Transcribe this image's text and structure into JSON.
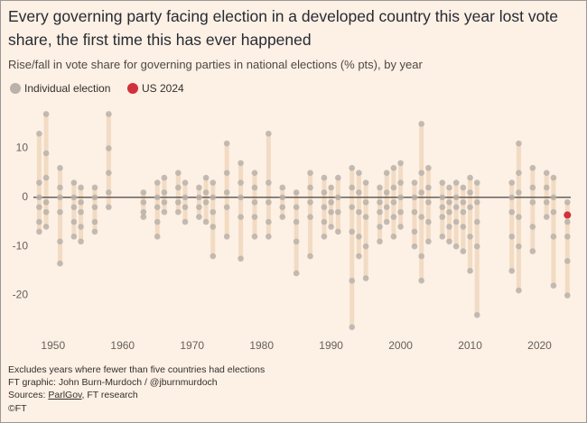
{
  "chart_data": {
    "type": "strip",
    "title": "Every governing party facing election in a developed country this year lost vote share, the first time this has ever happened",
    "subtitle": "Rise/fall in vote share for governing parties in national elections (% pts), by year",
    "notes": [
      "Excludes years where fewer than five countries had elections",
      "FT graphic: John Burn-Murdoch / @jburnmurdoch"
    ],
    "sources_label": "Sources:",
    "sources_link": "ParlGov",
    "sources_rest": ", FT research",
    "credit": "©FT",
    "xlim": [
      1946,
      2025
    ],
    "ylim": [
      -28,
      18
    ],
    "xticks": [
      1950,
      1960,
      1970,
      1980,
      1990,
      2000,
      2010,
      2020
    ],
    "yticks": [
      -20,
      -10,
      0,
      10
    ],
    "range_color": "#f2dbc3",
    "series": [
      {
        "name": "Individual election",
        "color": "#b9b1aa",
        "x": [
          1948,
          1949,
          1951,
          1953,
          1954,
          1956,
          1958,
          1963,
          1965,
          1966,
          1968,
          1969,
          1971,
          1972,
          1973,
          1975,
          1977,
          1979,
          1981,
          1983,
          1985,
          1987,
          1989,
          1990,
          1991,
          1993,
          1994,
          1995,
          1997,
          1998,
          1999,
          2000,
          2002,
          2003,
          2004,
          2006,
          2007,
          2008,
          2009,
          2010,
          2011,
          2016,
          2017,
          2019,
          2021,
          2022,
          2024
        ],
        "values": [
          [
            13,
            3,
            0,
            -2,
            -5,
            -7
          ],
          [
            17,
            9,
            4,
            -1,
            -3,
            -6
          ],
          [
            6,
            2,
            0,
            -3,
            -9,
            -13.5
          ],
          [
            3,
            0,
            -2,
            -5,
            -8
          ],
          [
            2,
            -1,
            -3,
            -6,
            -9
          ],
          [
            2,
            0,
            -2,
            -5,
            -7
          ],
          [
            17,
            10,
            5,
            1,
            -2
          ],
          [
            1,
            -1,
            -3,
            -4
          ],
          [
            3,
            0,
            -2,
            -5,
            -8
          ],
          [
            4,
            1,
            -1,
            -3
          ],
          [
            5,
            2,
            -1,
            -3
          ],
          [
            3,
            0,
            -2,
            -5
          ],
          [
            2,
            0,
            -2,
            -4
          ],
          [
            4,
            1,
            -1,
            -5
          ],
          [
            3,
            0,
            -3,
            -6,
            -12
          ],
          [
            11,
            5,
            1,
            -2,
            -8
          ],
          [
            7,
            3,
            0,
            -4,
            -12.5
          ],
          [
            5,
            2,
            -1,
            -4,
            -8
          ],
          [
            13,
            3,
            -1,
            -5,
            -8
          ],
          [
            2,
            0,
            -2,
            -4
          ],
          [
            1,
            -2,
            -5,
            -9,
            -15.5
          ],
          [
            5,
            2,
            -1,
            -4,
            -12
          ],
          [
            4,
            1,
            -2,
            -5,
            -8
          ],
          [
            2,
            -1,
            -3,
            -6
          ],
          [
            4,
            0,
            -3,
            -7
          ],
          [
            6,
            2,
            -2,
            -7,
            -17,
            -26.5
          ],
          [
            5,
            1,
            -3,
            -8,
            -12
          ],
          [
            3,
            -1,
            -4,
            -10,
            -16.5
          ],
          [
            2,
            -1,
            -3,
            -6,
            -9
          ],
          [
            5,
            1,
            -2,
            -5
          ],
          [
            6,
            2,
            -1,
            -4,
            -8
          ],
          [
            7,
            3,
            0,
            -3,
            -6
          ],
          [
            3,
            0,
            -3,
            -7,
            -10
          ],
          [
            15,
            5,
            1,
            -4,
            -12,
            -17
          ],
          [
            6,
            2,
            -1,
            -5,
            -9
          ],
          [
            3,
            0,
            -2,
            -4,
            -8
          ],
          [
            2,
            -1,
            -3,
            -6,
            -9
          ],
          [
            3,
            0,
            -2,
            -5,
            -10
          ],
          [
            2,
            -1,
            -3,
            -6,
            -11
          ],
          [
            4,
            1,
            -2,
            -8,
            -15
          ],
          [
            3,
            -1,
            -5,
            -10,
            -24
          ],
          [
            3,
            0,
            -3,
            -8,
            -15
          ],
          [
            11,
            5,
            1,
            -4,
            -10,
            -19
          ],
          [
            6,
            2,
            -1,
            -6,
            -11
          ],
          [
            5,
            2,
            -1,
            -4
          ],
          [
            4,
            0,
            -3,
            -8,
            -18
          ],
          [
            -1,
            -5,
            -8,
            -13,
            -20
          ]
        ]
      },
      {
        "name": "US 2024",
        "color": "#d3303d",
        "x": [
          2024
        ],
        "values": [
          [
            -3.6
          ]
        ]
      }
    ]
  }
}
